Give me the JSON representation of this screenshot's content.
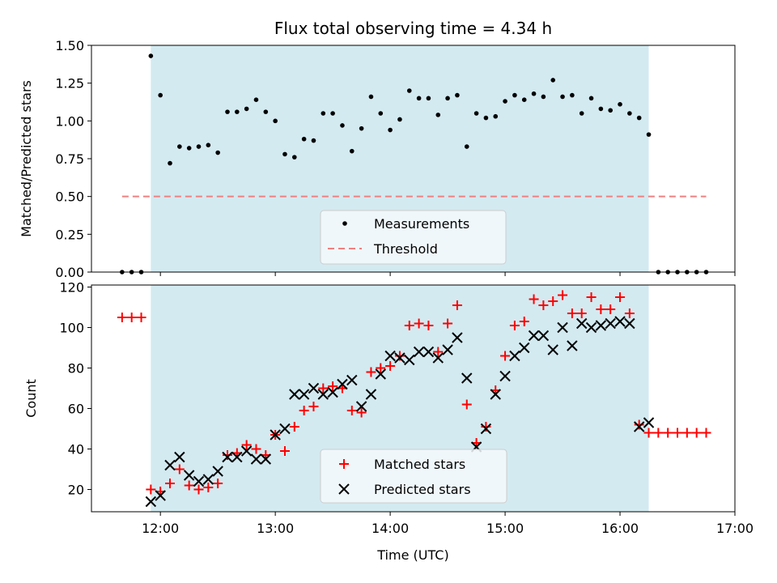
{
  "chart_data": [
    {
      "type": "scatter",
      "title": "Flux total observing time = 4.34 h",
      "xlabel": "",
      "ylabel": "Matched/Predicted stars",
      "ylim": [
        0,
        1.5
      ],
      "yticks": [
        "0.00",
        "0.25",
        "0.50",
        "0.75",
        "1.00",
        "1.25",
        "1.50"
      ],
      "ytick_values": [
        0,
        0.25,
        0.5,
        0.75,
        1.0,
        1.25,
        1.5
      ],
      "xlim": [
        "11:24",
        "17:00"
      ],
      "shaded_span": [
        "11:55",
        "16:15"
      ],
      "shade_color": "#d3eaf1",
      "legend_position": "lower center",
      "grid": false,
      "series": [
        {
          "name": "Measurements",
          "marker": "dot",
          "color": "#000000",
          "points": [
            [
              "11:40",
              0
            ],
            [
              "11:45",
              0
            ],
            [
              "11:50",
              0
            ],
            [
              "11:55",
              1.43
            ],
            [
              "12:00",
              1.17
            ],
            [
              "12:05",
              0.72
            ],
            [
              "12:10",
              0.83
            ],
            [
              "12:15",
              0.82
            ],
            [
              "12:20",
              0.83
            ],
            [
              "12:25",
              0.84
            ],
            [
              "12:30",
              0.79
            ],
            [
              "12:35",
              1.06
            ],
            [
              "12:40",
              1.06
            ],
            [
              "12:45",
              1.08
            ],
            [
              "12:50",
              1.14
            ],
            [
              "12:55",
              1.06
            ],
            [
              "13:00",
              1.0
            ],
            [
              "13:05",
              0.78
            ],
            [
              "13:10",
              0.76
            ],
            [
              "13:15",
              0.88
            ],
            [
              "13:20",
              0.87
            ],
            [
              "13:25",
              1.05
            ],
            [
              "13:30",
              1.05
            ],
            [
              "13:35",
              0.97
            ],
            [
              "13:40",
              0.8
            ],
            [
              "13:45",
              0.95
            ],
            [
              "13:50",
              1.16
            ],
            [
              "13:55",
              1.05
            ],
            [
              "14:00",
              0.94
            ],
            [
              "14:05",
              1.01
            ],
            [
              "14:10",
              1.2
            ],
            [
              "14:15",
              1.15
            ],
            [
              "14:20",
              1.15
            ],
            [
              "14:25",
              1.04
            ],
            [
              "14:30",
              1.15
            ],
            [
              "14:35",
              1.17
            ],
            [
              "14:40",
              0.83
            ],
            [
              "14:45",
              1.05
            ],
            [
              "14:50",
              1.02
            ],
            [
              "14:55",
              1.03
            ],
            [
              "15:00",
              1.13
            ],
            [
              "15:05",
              1.17
            ],
            [
              "15:10",
              1.14
            ],
            [
              "15:15",
              1.18
            ],
            [
              "15:20",
              1.16
            ],
            [
              "15:25",
              1.27
            ],
            [
              "15:30",
              1.16
            ],
            [
              "15:35",
              1.17
            ],
            [
              "15:40",
              1.05
            ],
            [
              "15:45",
              1.15
            ],
            [
              "15:50",
              1.08
            ],
            [
              "15:55",
              1.07
            ],
            [
              "16:00",
              1.11
            ],
            [
              "16:05",
              1.05
            ],
            [
              "16:10",
              1.02
            ],
            [
              "16:15",
              0.91
            ],
            [
              "16:20",
              0
            ],
            [
              "16:25",
              0
            ],
            [
              "16:30",
              0
            ],
            [
              "16:35",
              0
            ],
            [
              "16:40",
              0
            ],
            [
              "16:45",
              0
            ]
          ]
        },
        {
          "name": "Threshold",
          "marker": "dashed-line",
          "color": "#f08080",
          "x_range": [
            "11:40",
            "16:45"
          ],
          "value": 0.5
        }
      ]
    },
    {
      "type": "scatter",
      "title": "",
      "xlabel": "Time (UTC)",
      "ylabel": "Count",
      "ylim": [
        9,
        121
      ],
      "yticks": [
        "20",
        "40",
        "60",
        "80",
        "100",
        "120"
      ],
      "ytick_values": [
        20,
        40,
        60,
        80,
        100,
        120
      ],
      "xlim": [
        "11:24",
        "17:00"
      ],
      "xticks": [
        "12:00",
        "13:00",
        "14:00",
        "15:00",
        "16:00",
        "17:00"
      ],
      "shaded_span": [
        "11:55",
        "16:15"
      ],
      "legend_position": "lower center",
      "grid": false,
      "series": [
        {
          "name": "Matched stars",
          "marker": "plus",
          "color": "#ff0000",
          "points": [
            [
              "11:40",
              105
            ],
            [
              "11:45",
              105
            ],
            [
              "11:50",
              105
            ],
            [
              "11:55",
              20
            ],
            [
              "12:00",
              19
            ],
            [
              "12:05",
              23
            ],
            [
              "12:10",
              30
            ],
            [
              "12:15",
              22
            ],
            [
              "12:20",
              20
            ],
            [
              "12:25",
              21
            ],
            [
              "12:30",
              23
            ],
            [
              "12:35",
              37
            ],
            [
              "12:40",
              38
            ],
            [
              "12:45",
              42
            ],
            [
              "12:50",
              40
            ],
            [
              "12:55",
              37
            ],
            [
              "13:00",
              47
            ],
            [
              "13:05",
              39
            ],
            [
              "13:10",
              51
            ],
            [
              "13:15",
              59
            ],
            [
              "13:20",
              61
            ],
            [
              "13:25",
              70
            ],
            [
              "13:30",
              71
            ],
            [
              "13:35",
              70
            ],
            [
              "13:40",
              59
            ],
            [
              "13:45",
              58
            ],
            [
              "13:50",
              78
            ],
            [
              "13:55",
              80
            ],
            [
              "14:00",
              81
            ],
            [
              "14:05",
              86
            ],
            [
              "14:10",
              101
            ],
            [
              "14:15",
              102
            ],
            [
              "14:20",
              101
            ],
            [
              "14:25",
              88
            ],
            [
              "14:30",
              102
            ],
            [
              "14:35",
              111
            ],
            [
              "14:40",
              62
            ],
            [
              "14:45",
              43
            ],
            [
              "14:50",
              51
            ],
            [
              "14:55",
              69
            ],
            [
              "15:00",
              86
            ],
            [
              "15:05",
              101
            ],
            [
              "15:10",
              103
            ],
            [
              "15:15",
              114
            ],
            [
              "15:20",
              111
            ],
            [
              "15:25",
              113
            ],
            [
              "15:30",
              116
            ],
            [
              "15:35",
              107
            ],
            [
              "15:40",
              107
            ],
            [
              "15:45",
              115
            ],
            [
              "15:50",
              109
            ],
            [
              "15:55",
              109
            ],
            [
              "16:00",
              115
            ],
            [
              "16:05",
              107
            ],
            [
              "16:10",
              52
            ],
            [
              "16:15",
              48
            ],
            [
              "16:20",
              48
            ],
            [
              "16:25",
              48
            ],
            [
              "16:30",
              48
            ],
            [
              "16:35",
              48
            ],
            [
              "16:40",
              48
            ],
            [
              "16:45",
              48
            ]
          ]
        },
        {
          "name": "Predicted stars",
          "marker": "x",
          "color": "#000000",
          "points": [
            [
              "11:55",
              14
            ],
            [
              "12:00",
              17
            ],
            [
              "12:05",
              32
            ],
            [
              "12:10",
              36
            ],
            [
              "12:15",
              27
            ],
            [
              "12:20",
              24
            ],
            [
              "12:25",
              25
            ],
            [
              "12:30",
              29
            ],
            [
              "12:35",
              36
            ],
            [
              "12:40",
              36
            ],
            [
              "12:45",
              39
            ],
            [
              "12:50",
              35
            ],
            [
              "12:55",
              35
            ],
            [
              "13:00",
              47
            ],
            [
              "13:05",
              50
            ],
            [
              "13:10",
              67
            ],
            [
              "13:15",
              67
            ],
            [
              "13:20",
              70
            ],
            [
              "13:25",
              67
            ],
            [
              "13:30",
              68
            ],
            [
              "13:35",
              72
            ],
            [
              "13:40",
              74
            ],
            [
              "13:45",
              61
            ],
            [
              "13:50",
              67
            ],
            [
              "13:55",
              77
            ],
            [
              "14:00",
              86
            ],
            [
              "14:05",
              85
            ],
            [
              "14:10",
              84
            ],
            [
              "14:15",
              88
            ],
            [
              "14:20",
              88
            ],
            [
              "14:25",
              85
            ],
            [
              "14:30",
              89
            ],
            [
              "14:35",
              95
            ],
            [
              "14:40",
              75
            ],
            [
              "14:45",
              41
            ],
            [
              "14:50",
              50
            ],
            [
              "14:55",
              67
            ],
            [
              "15:00",
              76
            ],
            [
              "15:05",
              86
            ],
            [
              "15:10",
              90
            ],
            [
              "15:15",
              96
            ],
            [
              "15:20",
              96
            ],
            [
              "15:25",
              89
            ],
            [
              "15:30",
              100
            ],
            [
              "15:35",
              91
            ],
            [
              "15:40",
              102
            ],
            [
              "15:45",
              100
            ],
            [
              "15:50",
              101
            ],
            [
              "15:55",
              102
            ],
            [
              "16:00",
              103
            ],
            [
              "16:05",
              102
            ],
            [
              "16:10",
              51
            ],
            [
              "16:15",
              53
            ]
          ]
        }
      ]
    }
  ]
}
